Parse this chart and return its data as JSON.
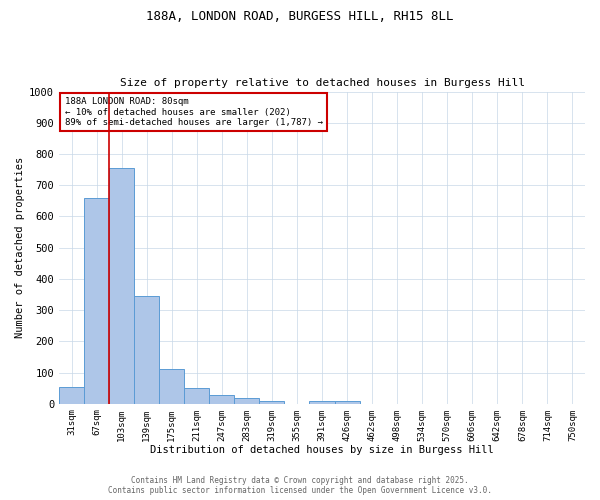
{
  "title": "188A, LONDON ROAD, BURGESS HILL, RH15 8LL",
  "subtitle": "Size of property relative to detached houses in Burgess Hill",
  "xlabel": "Distribution of detached houses by size in Burgess Hill",
  "ylabel": "Number of detached properties",
  "bar_labels": [
    "31sqm",
    "67sqm",
    "103sqm",
    "139sqm",
    "175sqm",
    "211sqm",
    "247sqm",
    "283sqm",
    "319sqm",
    "355sqm",
    "391sqm",
    "426sqm",
    "462sqm",
    "498sqm",
    "534sqm",
    "570sqm",
    "606sqm",
    "642sqm",
    "678sqm",
    "714sqm",
    "750sqm"
  ],
  "bar_values": [
    55,
    660,
    755,
    345,
    110,
    50,
    28,
    18,
    10,
    0,
    8,
    8,
    0,
    0,
    0,
    0,
    0,
    0,
    0,
    0,
    0
  ],
  "bar_color": "#aec6e8",
  "bar_edge_color": "#5b9bd5",
  "vline_x": 1.5,
  "vline_color": "#cc0000",
  "ylim": [
    0,
    1000
  ],
  "yticks": [
    0,
    100,
    200,
    300,
    400,
    500,
    600,
    700,
    800,
    900,
    1000
  ],
  "annotation_text": "188A LONDON ROAD: 80sqm\n← 10% of detached houses are smaller (202)\n89% of semi-detached houses are larger (1,787) →",
  "annotation_box_color": "#ffffff",
  "annotation_box_edge": "#cc0000",
  "footer_line1": "Contains HM Land Registry data © Crown copyright and database right 2025.",
  "footer_line2": "Contains public sector information licensed under the Open Government Licence v3.0.",
  "background_color": "#ffffff",
  "grid_color": "#c8d8e8"
}
